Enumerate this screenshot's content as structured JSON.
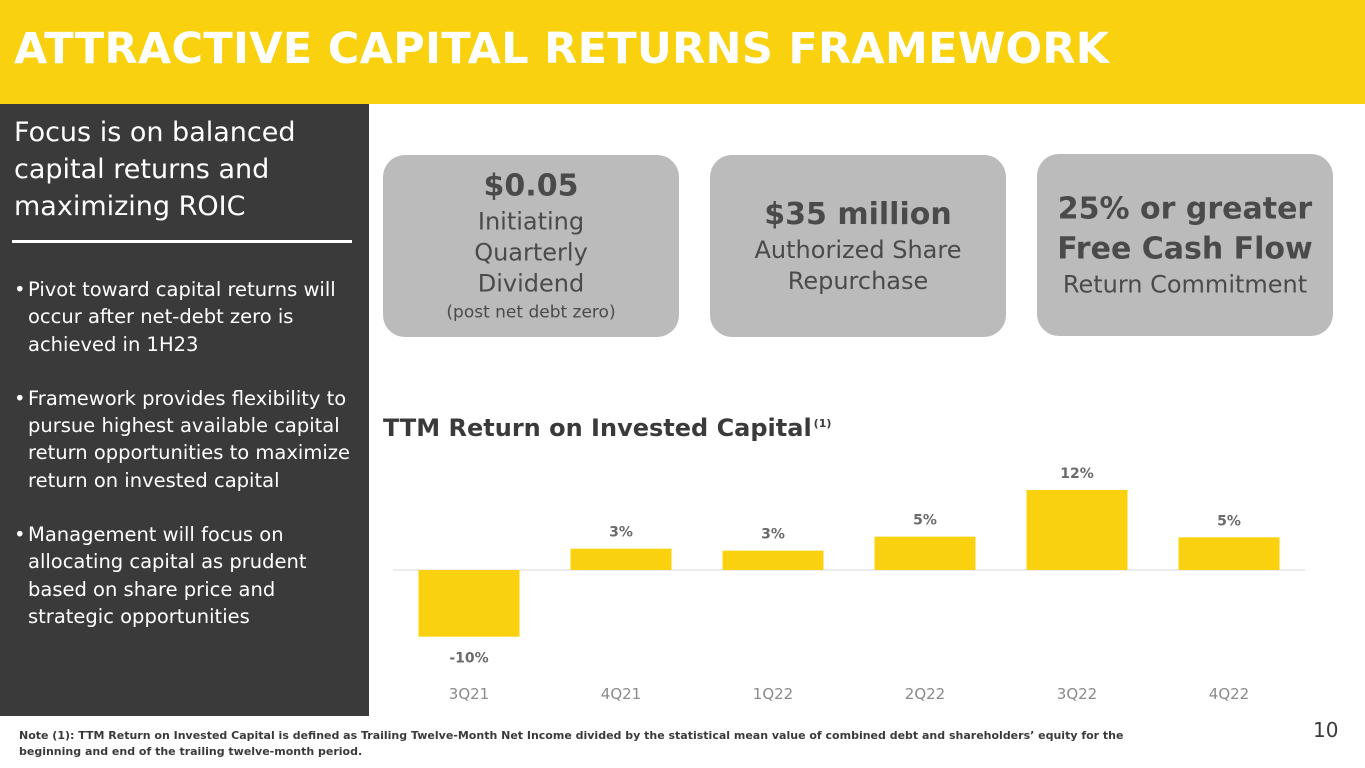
{
  "header": {
    "title": "ATTRACTIVE CAPITAL RETURNS FRAMEWORK"
  },
  "sidebar": {
    "heading": "Focus is on balanced capital returns and maximizing ROIC",
    "bullets": [
      "Pivot toward capital returns will occur after net-debt zero is achieved in 1H23",
      "Framework  provides flexibility to pursue highest available capital return opportunities to maximize return on invested capital",
      "Management will focus on allocating capital as prudent based on share price and strategic opportunities"
    ]
  },
  "cards": [
    {
      "big": "$0.05",
      "mid": "Initiating Quarterly Dividend",
      "small": "(post net debt zero)"
    },
    {
      "big": "$35 million",
      "mid": "Authorized Share Repurchase"
    },
    {
      "big": "25% or greater Free Cash Flow",
      "mid": "Return Commitment"
    }
  ],
  "chart_data": {
    "type": "bar",
    "title": "TTM Return on Invested Capital",
    "title_superscript": "(1)",
    "categories": [
      "3Q21",
      "4Q21",
      "1Q22",
      "2Q22",
      "3Q22",
      "4Q22"
    ],
    "values": [
      -10,
      3,
      3,
      5,
      12,
      5
    ],
    "display_values": [
      -10,
      3.2,
      2.9,
      5,
      12,
      4.9
    ],
    "value_labels": [
      "-10%",
      "3%",
      "3%",
      "5%",
      "12%",
      "5%"
    ],
    "ylim": [
      -10,
      12
    ],
    "grid": false,
    "xlabel": "",
    "ylabel": "",
    "bar_color": "#F9D10F"
  },
  "footnote": "Note (1): TTM Return on Invested Capital is defined as Trailing Twelve-Month Net Income divided by the statistical mean value of combined debt and shareholders’ equity for the beginning and end of the trailing twelve-month period.",
  "page_number": "10",
  "colors": {
    "accent": "#F9D10F",
    "sidebar_bg": "#3A3A3A",
    "card_bg": "#BBBBBB",
    "text": "#4a4a4a"
  }
}
